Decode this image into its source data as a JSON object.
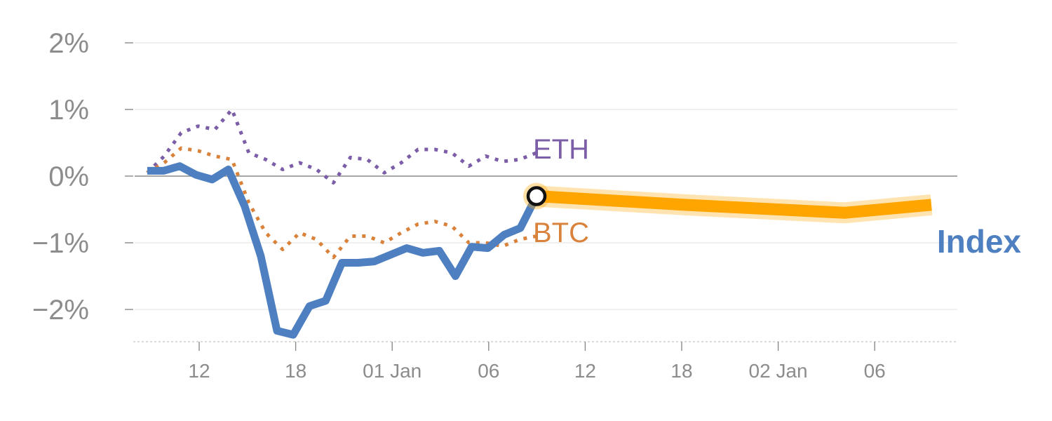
{
  "chart_data": {
    "type": "line",
    "y_unit": "%",
    "ylim": [
      -2.5,
      2.0
    ],
    "y_ticks": [
      2,
      1,
      0,
      -1,
      -2
    ],
    "y_tick_labels": [
      "2%",
      "1%",
      "0%",
      "−1%",
      "−2%"
    ],
    "x_ticks": [
      "12",
      "18",
      "01 Jan",
      "06",
      "12",
      "18",
      "02 Jan",
      "06"
    ],
    "grid": true,
    "series": [
      {
        "name": "ETH",
        "style": "dotted",
        "color": "#7b5ea7",
        "values": [
          0.05,
          0.3,
          0.65,
          0.75,
          0.7,
          1.0,
          0.35,
          0.25,
          0.1,
          0.2,
          0.1,
          -0.1,
          0.28,
          0.25,
          0.05,
          0.2,
          0.4,
          0.4,
          0.35,
          0.15,
          0.3,
          0.22,
          0.25,
          0.35
        ]
      },
      {
        "name": "BTC",
        "style": "dotted",
        "color": "#d9823b",
        "values": [
          0.05,
          0.2,
          0.42,
          0.38,
          0.3,
          0.25,
          -0.4,
          -0.85,
          -1.1,
          -0.85,
          -0.95,
          -1.22,
          -0.9,
          -0.9,
          -1.0,
          -0.85,
          -0.72,
          -0.68,
          -0.75,
          -1.0,
          -1.0,
          -1.05,
          -0.95,
          -0.9
        ]
      },
      {
        "name": "Index",
        "style": "solid",
        "color": "#4e7fc0",
        "values": [
          0.08,
          0.08,
          0.15,
          0.02,
          -0.05,
          0.1,
          -0.45,
          -1.2,
          -2.32,
          -2.38,
          -1.95,
          -1.87,
          -1.3,
          -1.3,
          -1.28,
          -1.18,
          -1.08,
          -1.15,
          -1.12,
          -1.5,
          -1.06,
          -1.08,
          -0.88,
          -0.78,
          -0.3
        ]
      },
      {
        "name": "Index (projection)",
        "style": "highlight",
        "color": "#ffa500",
        "points": [
          [
            0,
            -0.3
          ],
          [
            0.375,
            -0.43
          ],
          [
            0.78,
            -0.55
          ],
          [
            1.0,
            -0.43
          ]
        ]
      }
    ],
    "labels": {
      "eth": "ETH",
      "btc": "BTC",
      "index": "Index"
    }
  }
}
